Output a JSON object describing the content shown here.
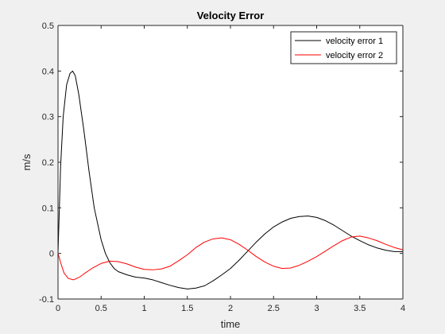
{
  "chart_data": {
    "type": "line",
    "title": "Velocity Error",
    "xlabel": "time",
    "ylabel": "m/s",
    "xlim": [
      0,
      4
    ],
    "ylim": [
      -0.1,
      0.5
    ],
    "x_ticks": [
      "0",
      "0.5",
      "1",
      "1.5",
      "2",
      "2.5",
      "3",
      "3.5",
      "4"
    ],
    "y_ticks": [
      "-0.1",
      "0",
      "0.1",
      "0.2",
      "0.3",
      "0.4",
      "0.5"
    ],
    "grid": false,
    "legend_position": "top-right",
    "series": [
      {
        "name": "velocity error 1",
        "color": "#000000",
        "x": [
          0,
          0.03,
          0.06,
          0.1,
          0.14,
          0.17,
          0.2,
          0.24,
          0.3,
          0.36,
          0.42,
          0.5,
          0.55,
          0.6,
          0.65,
          0.7,
          0.8,
          0.9,
          1.0,
          1.1,
          1.2,
          1.3,
          1.4,
          1.5,
          1.6,
          1.7,
          1.8,
          1.9,
          2.0,
          2.1,
          2.2,
          2.3,
          2.4,
          2.5,
          2.6,
          2.7,
          2.8,
          2.9,
          3.0,
          3.1,
          3.2,
          3.3,
          3.4,
          3.5,
          3.6,
          3.7,
          3.8,
          3.9,
          4.0
        ],
        "y": [
          0.0,
          0.19,
          0.3,
          0.37,
          0.395,
          0.4,
          0.39,
          0.35,
          0.27,
          0.18,
          0.1,
          0.03,
          0.0,
          -0.02,
          -0.033,
          -0.04,
          -0.047,
          -0.052,
          -0.054,
          -0.058,
          -0.064,
          -0.07,
          -0.075,
          -0.078,
          -0.076,
          -0.071,
          -0.06,
          -0.047,
          -0.033,
          -0.015,
          0.005,
          0.025,
          0.043,
          0.058,
          0.069,
          0.077,
          0.081,
          0.082,
          0.079,
          0.072,
          0.062,
          0.05,
          0.038,
          0.028,
          0.019,
          0.012,
          0.007,
          0.004,
          0.004
        ]
      },
      {
        "name": "velocity error 2",
        "color": "#ff0000",
        "x": [
          0,
          0.03,
          0.07,
          0.12,
          0.18,
          0.25,
          0.3,
          0.4,
          0.5,
          0.6,
          0.7,
          0.8,
          0.9,
          1.0,
          1.1,
          1.2,
          1.3,
          1.4,
          1.5,
          1.6,
          1.7,
          1.8,
          1.9,
          2.0,
          2.1,
          2.2,
          2.3,
          2.4,
          2.5,
          2.6,
          2.7,
          2.8,
          2.9,
          3.0,
          3.1,
          3.2,
          3.3,
          3.4,
          3.5,
          3.6,
          3.7,
          3.8,
          3.9,
          4.0
        ],
        "y": [
          0.0,
          -0.02,
          -0.043,
          -0.055,
          -0.058,
          -0.052,
          -0.045,
          -0.032,
          -0.022,
          -0.017,
          -0.018,
          -0.023,
          -0.03,
          -0.035,
          -0.036,
          -0.034,
          -0.028,
          -0.016,
          -0.003,
          0.013,
          0.025,
          0.032,
          0.034,
          0.03,
          0.02,
          0.007,
          -0.007,
          -0.019,
          -0.028,
          -0.033,
          -0.032,
          -0.026,
          -0.017,
          -0.007,
          0.005,
          0.017,
          0.028,
          0.036,
          0.038,
          0.034,
          0.028,
          0.02,
          0.013,
          0.008
        ]
      }
    ]
  }
}
